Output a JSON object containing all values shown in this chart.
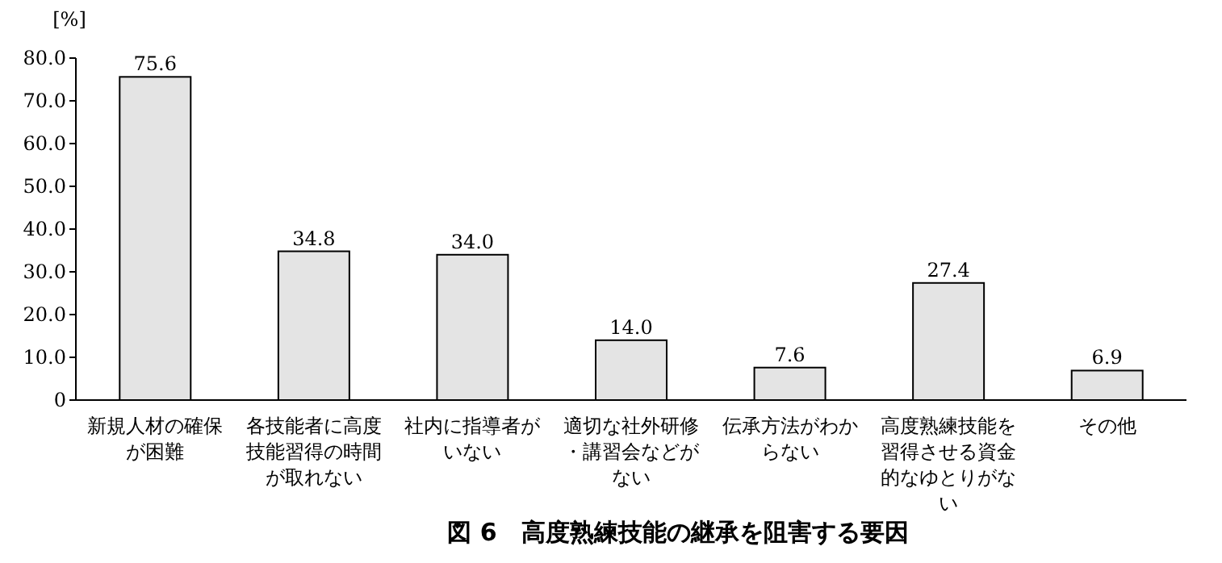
{
  "chart_data": {
    "type": "bar",
    "title": "図 6　高度熟練技能の継承を阻害する要因",
    "ylabel": "[%]",
    "categories": [
      "新規人材の確保が困難",
      "各技能者に高度技能習得の時間が取れない",
      "社内に指導者がいない",
      "適切な社外研修・講習会などがない",
      "伝承方法がわからない",
      "高度熟練技能を習得させる資金的なゆとりがない",
      "その他"
    ],
    "values": [
      75.6,
      34.8,
      34.0,
      14.0,
      7.6,
      27.4,
      6.9
    ],
    "value_labels": [
      "75.6",
      "34.8",
      "34.0",
      "14.0",
      "7.6",
      "27.4",
      "6.9"
    ],
    "color": "#e4e4e4",
    "ylim": [
      0,
      80
    ],
    "yticks": [
      0,
      {
        "value": 10,
        "label": "10.0"
      },
      {
        "value": 20,
        "label": "20.0"
      },
      {
        "value": 30,
        "label": "30.0"
      },
      {
        "value": 40,
        "label": "40.0"
      },
      {
        "value": 50,
        "label": "50.0"
      },
      {
        "value": 60,
        "label": "60.0"
      },
      {
        "value": 70,
        "label": "70.0"
      },
      {
        "value": 80,
        "label": "80.0"
      }
    ],
    "grid": false
  }
}
